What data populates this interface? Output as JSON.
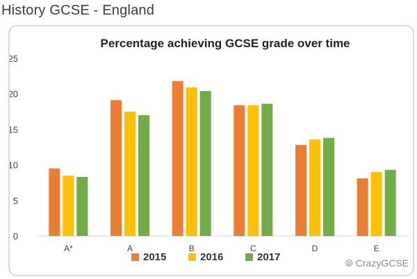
{
  "header": {
    "title": "History GCSE - England"
  },
  "watermark": {
    "text": "CrazyGCSE",
    "icon": "wechat-icon"
  },
  "colors": {
    "2015": "#ED7D31",
    "2016": "#FFC000",
    "2017": "#70AD47",
    "grid": "#e6e6e6",
    "axis_text": "#404040"
  },
  "chart_data": {
    "type": "bar",
    "title": "Percentage achieving GCSE grade over time",
    "xlabel": "",
    "ylabel": "",
    "categories": [
      "A*",
      "A",
      "B",
      "C",
      "D",
      "E"
    ],
    "ylim": [
      0,
      25
    ],
    "yticks": [
      0,
      5,
      10,
      15,
      20,
      25
    ],
    "grid": false,
    "legend_position": "bottom",
    "series": [
      {
        "name": "2015",
        "values": [
          9.5,
          19.1,
          21.8,
          18.4,
          12.8,
          8.1
        ]
      },
      {
        "name": "2016",
        "values": [
          8.5,
          17.5,
          20.9,
          18.4,
          13.6,
          9.0
        ]
      },
      {
        "name": "2017",
        "values": [
          8.3,
          17.0,
          20.4,
          18.6,
          13.8,
          9.3
        ]
      }
    ]
  }
}
